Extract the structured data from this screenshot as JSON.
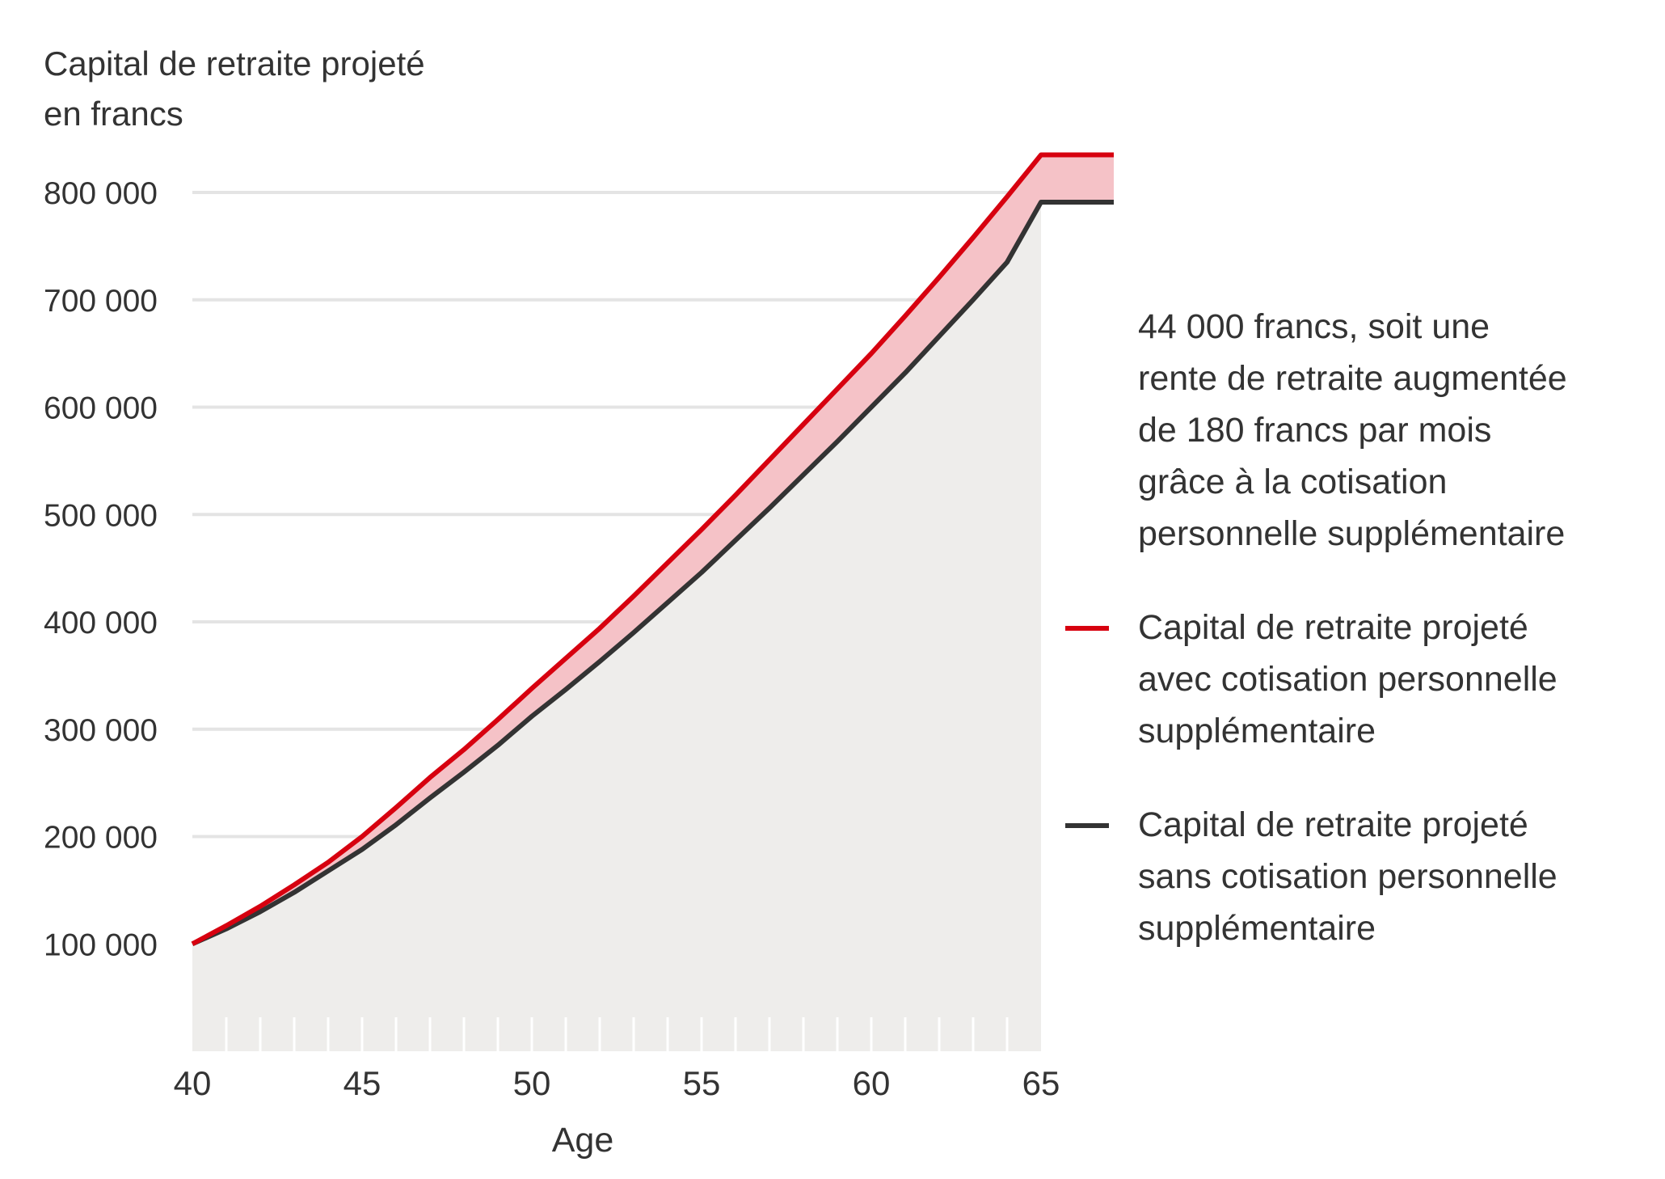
{
  "chart_data": {
    "type": "line",
    "ylabel_lines": [
      "Capital de retraite projeté",
      "en francs"
    ],
    "xlabel": "Age",
    "xlim": [
      40,
      65
    ],
    "ylim": [
      0,
      800000
    ],
    "y_ticks": [
      100000,
      200000,
      300000,
      400000,
      500000,
      600000,
      700000,
      800000
    ],
    "y_tick_labels": [
      "100 000",
      "200 000",
      "300 000",
      "400 000",
      "500 000",
      "600 000",
      "700 000",
      "800 000"
    ],
    "x_ticks": [
      40,
      45,
      50,
      55,
      60,
      65
    ],
    "x_tick_labels": [
      "40",
      "45",
      "50",
      "55",
      "60",
      "65"
    ],
    "grid": "horizontal",
    "legend_position": "right",
    "annotation_lines": [
      "44 000 francs, soit une",
      "rente de retraite augmentée",
      "de 180 francs par mois",
      "grâce à la cotisation",
      "personnelle supplémentaire"
    ],
    "x": [
      40,
      41,
      42,
      43,
      44,
      45,
      46,
      47,
      48,
      49,
      50,
      51,
      52,
      53,
      54,
      55,
      56,
      57,
      58,
      59,
      60,
      61,
      62,
      63,
      64,
      65
    ],
    "series": [
      {
        "name_lines": [
          "Capital de retraite projeté",
          "avec cotisation personnelle",
          "supplémentaire"
        ],
        "color": "#d7000f",
        "values": [
          100000,
          117000,
          135000,
          155000,
          176000,
          200000,
          227000,
          255000,
          281000,
          309000,
          338000,
          366000,
          394000,
          424000,
          455000,
          486000,
          518000,
          551000,
          584000,
          617000,
          650000,
          685000,
          721000,
          758000,
          796000,
          835000
        ]
      },
      {
        "name_lines": [
          "Capital de retraite projeté",
          "sans cotisation personnelle",
          "supplémentaire"
        ],
        "color": "#333333",
        "values": [
          100000,
          114000,
          130000,
          148000,
          168000,
          188000,
          211000,
          236000,
          260000,
          285000,
          312000,
          337000,
          363000,
          390000,
          418000,
          446000,
          476000,
          506000,
          537000,
          568000,
          600000,
          632000,
          666000,
          700000,
          735000,
          791000
        ]
      }
    ],
    "colors": {
      "fill_gap": "#f5c2c7",
      "fill_base": "#eeedeb",
      "grid": "#e4e4e4",
      "text": "#333333"
    }
  }
}
